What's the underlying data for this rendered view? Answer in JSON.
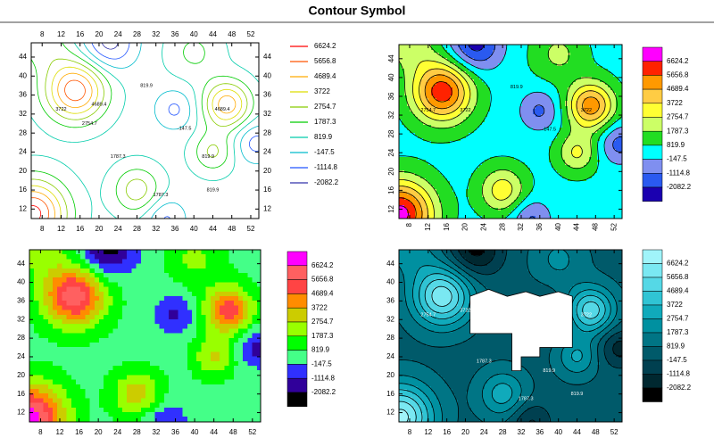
{
  "title": "Contour Symbol",
  "chart_data": [
    {
      "type": "contour",
      "style": "lines",
      "xlim": [
        5.7,
        53.7
      ],
      "ylim": [
        10,
        47
      ],
      "xticks": [
        8,
        12,
        16,
        20,
        24,
        28,
        32,
        36,
        40,
        44,
        48,
        52
      ],
      "yticks": [
        12,
        16,
        20,
        24,
        28,
        32,
        36,
        40,
        44
      ],
      "tick_label_sides": [
        "left",
        "right",
        "top",
        "bottom"
      ],
      "rotated_tick_labels": false,
      "levels": [
        -2082.2,
        -1114.8,
        -147.5,
        819.9,
        1787.3,
        2754.7,
        3722,
        4689.4,
        5656.8,
        6624.2
      ],
      "colors": [
        "#3333aa",
        "#2255ff",
        "#00bbcc",
        "#00ccaa",
        "#00cc00",
        "#88cc00",
        "#dddd00",
        "#ffaa00",
        "#ff5500",
        "#ff0000"
      ]
    },
    {
      "type": "contour",
      "style": "filled",
      "xlim": [
        5.7,
        53.7
      ],
      "ylim": [
        10,
        47
      ],
      "xticks": [
        8,
        12,
        16,
        20,
        24,
        28,
        32,
        36,
        40,
        44,
        48,
        52
      ],
      "yticks": [
        12,
        16,
        20,
        24,
        28,
        32,
        36,
        40,
        44
      ],
      "tick_label_sides": [
        "left",
        "bottom"
      ],
      "rotated_tick_labels": true,
      "levels": [
        -2082.2,
        -1114.8,
        -147.5,
        819.9,
        1787.3,
        2754.7,
        3722,
        4689.4,
        5656.8,
        6624.2
      ],
      "colors": [
        "#1a00b0",
        "#2a5af0",
        "#7f8ff0",
        "#00ffff",
        "#22dd22",
        "#ccff66",
        "#ffff33",
        "#ffcc44",
        "#ff9900",
        "#ff2200",
        "#ff00ff"
      ]
    },
    {
      "type": "contour",
      "style": "raster",
      "xlim": [
        5.7,
        53.7
      ],
      "ylim": [
        10,
        47
      ],
      "xticks": [
        8,
        12,
        16,
        20,
        24,
        28,
        32,
        36,
        40,
        44,
        48,
        52
      ],
      "yticks": [
        12,
        16,
        20,
        24,
        28,
        32,
        36,
        40,
        44
      ],
      "tick_label_sides": [
        "left",
        "bottom"
      ],
      "rotated_tick_labels": false,
      "levels": [
        -2082.2,
        -1114.8,
        -147.5,
        819.9,
        1787.3,
        2754.7,
        3722,
        4689.4,
        5656.8,
        6624.2
      ],
      "colors": [
        "#000000",
        "#30009a",
        "#3030ff",
        "#44ff88",
        "#00ff00",
        "#99ff00",
        "#cccc00",
        "#ff8c00",
        "#ff4444",
        "#ff6060",
        "#ff00ff"
      ]
    },
    {
      "type": "contour",
      "style": "filled",
      "xlim": [
        5.7,
        53.7
      ],
      "ylim": [
        10,
        47
      ],
      "xticks": [
        8,
        12,
        16,
        20,
        24,
        28,
        32,
        36,
        40,
        44,
        48,
        52
      ],
      "yticks": [
        12,
        16,
        20,
        24,
        28,
        32,
        36,
        40,
        44
      ],
      "tick_label_sides": [
        "left",
        "bottom"
      ],
      "rotated_tick_labels": false,
      "blanked": true,
      "levels": [
        -2082.2,
        -1114.8,
        -147.5,
        819.9,
        1787.3,
        2754.7,
        3722,
        4689.4,
        5656.8,
        6624.2
      ],
      "colors": [
        "#000000",
        "#002830",
        "#004050",
        "#005a6a",
        "#007585",
        "#0090a0",
        "#10aabb",
        "#30c4d4",
        "#55d8e6",
        "#7ae8f2",
        "#a0f4fa"
      ]
    }
  ]
}
